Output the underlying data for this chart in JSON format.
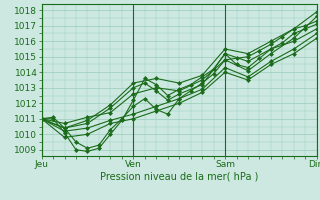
{
  "title": "Pression niveau de la mer( hPa )",
  "ylabel_values": [
    1009,
    1010,
    1011,
    1012,
    1013,
    1014,
    1015,
    1016,
    1017,
    1018
  ],
  "ylim": [
    1008.6,
    1018.4
  ],
  "xlim": [
    0,
    72
  ],
  "xtick_positions": [
    0,
    24,
    48,
    72
  ],
  "xtick_labels": [
    "Jeu",
    "Ven",
    "Sam",
    "Dim"
  ],
  "background_color": "#cce8e0",
  "grid_color": "#99ccbb",
  "line_color": "#1a6b1a",
  "series": [
    [
      0,
      1011.0,
      3,
      1011.1,
      6,
      1010.4,
      9,
      1009.5,
      12,
      1009.1,
      15,
      1009.3,
      18,
      1010.3,
      21,
      1011.0,
      24,
      1011.8,
      27,
      1012.3,
      30,
      1011.6,
      33,
      1011.3,
      36,
      1012.3,
      39,
      1012.8,
      42,
      1013.3,
      45,
      1013.9,
      48,
      1014.8,
      51,
      1014.9,
      54,
      1015.0,
      57,
      1015.4,
      60,
      1015.8,
      63,
      1016.3,
      66,
      1016.8,
      69,
      1017.0,
      72,
      1017.3
    ],
    [
      0,
      1011.0,
      3,
      1011.0,
      6,
      1010.1,
      9,
      1009.0,
      12,
      1008.9,
      15,
      1009.1,
      18,
      1010.0,
      21,
      1010.9,
      24,
      1012.2,
      27,
      1013.6,
      30,
      1013.2,
      33,
      1012.5,
      36,
      1012.9,
      39,
      1013.2,
      42,
      1013.7,
      45,
      1014.2,
      48,
      1015.2,
      51,
      1014.5,
      54,
      1014.3,
      57,
      1014.9,
      60,
      1015.5,
      63,
      1015.9,
      66,
      1016.5,
      69,
      1016.8,
      72,
      1017.1
    ],
    [
      0,
      1011.0,
      6,
      1010.7,
      12,
      1011.1,
      18,
      1011.4,
      24,
      1012.6,
      30,
      1013.0,
      36,
      1012.8,
      42,
      1013.5,
      48,
      1014.8,
      54,
      1014.1,
      60,
      1015.2,
      66,
      1016.2,
      72,
      1017.6
    ],
    [
      0,
      1011.0,
      6,
      1010.4,
      12,
      1010.7,
      18,
      1011.7,
      24,
      1013.0,
      27,
      1013.3,
      30,
      1012.8,
      33,
      1012.2,
      36,
      1012.6,
      42,
      1013.2,
      48,
      1015.2,
      54,
      1014.7,
      60,
      1015.5,
      66,
      1016.0,
      72,
      1016.8
    ],
    [
      0,
      1011.0,
      6,
      1010.2,
      12,
      1010.4,
      18,
      1010.9,
      24,
      1011.3,
      30,
      1011.8,
      36,
      1012.3,
      42,
      1012.9,
      48,
      1014.3,
      54,
      1013.7,
      60,
      1014.7,
      66,
      1015.5,
      72,
      1016.5
    ],
    [
      0,
      1011.0,
      6,
      1009.8,
      12,
      1010.0,
      18,
      1010.7,
      24,
      1011.0,
      30,
      1011.5,
      36,
      1012.0,
      42,
      1012.7,
      48,
      1014.0,
      54,
      1013.5,
      60,
      1014.5,
      66,
      1015.2,
      72,
      1016.2
    ],
    [
      0,
      1011.0,
      6,
      1010.4,
      12,
      1010.9,
      18,
      1011.9,
      24,
      1013.3,
      30,
      1013.6,
      36,
      1013.3,
      42,
      1013.8,
      48,
      1015.5,
      54,
      1015.2,
      60,
      1016.0,
      66,
      1016.8,
      72,
      1017.9
    ]
  ]
}
